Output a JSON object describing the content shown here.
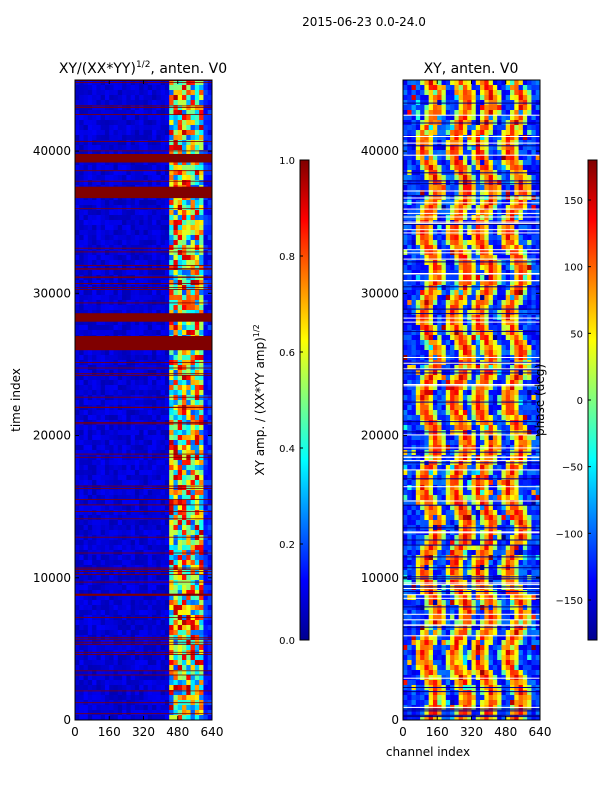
{
  "figure": {
    "suptitle": "2015-06-23 0.0-24.0",
    "colors": {
      "background": "#ffffff",
      "flag": "#800000",
      "base_low": "#00008f",
      "axis": "#000000"
    }
  },
  "chart_data": [
    {
      "type": "heatmap",
      "title_main": "XY/(XX*YY)",
      "title_sup": "1/2",
      "title_rest": ", anten. V0",
      "xlabel": "",
      "ylabel": "time index",
      "xlim": [
        0,
        640
      ],
      "ylim": [
        0,
        45000
      ],
      "xticks": [
        0,
        160,
        320,
        480,
        640
      ],
      "yticks": [
        0,
        10000,
        20000,
        30000,
        40000
      ],
      "xtick_labels": [
        "0",
        "160",
        "320",
        "480",
        "640"
      ],
      "ytick_labels": [
        "0",
        "10000",
        "20000",
        "30000",
        "40000"
      ],
      "flagged_time_bands": [
        [
          26000,
          27000
        ],
        [
          28000,
          28600
        ],
        [
          36700,
          37500
        ],
        [
          39200,
          39800
        ]
      ],
      "colorbar": {
        "label_main": "XY amp. / (XX*YY amp)",
        "label_sup": "1/2",
        "range": [
          0.0,
          1.0
        ],
        "ticks": [
          0.0,
          0.2,
          0.4,
          0.6,
          0.8,
          1.0
        ],
        "tick_labels": [
          "0.0",
          "0.2",
          "0.4",
          "0.6",
          "0.8",
          "1.0"
        ],
        "colormap": "jet"
      }
    },
    {
      "type": "heatmap",
      "title_main": "XY, anten. V0",
      "xlabel": "channel index",
      "ylabel": "",
      "xlim": [
        0,
        640
      ],
      "ylim": [
        0,
        45000
      ],
      "xticks": [
        0,
        160,
        320,
        480,
        640
      ],
      "yticks": [
        0,
        10000,
        20000,
        30000,
        40000
      ],
      "xtick_labels": [
        "0",
        "160",
        "320",
        "480",
        "640"
      ],
      "ytick_labels": [
        "0",
        "10000",
        "20000",
        "30000",
        "40000"
      ],
      "colorbar": {
        "label_main": "phase (deg)",
        "range": [
          -180,
          180
        ],
        "ticks": [
          -150,
          -100,
          -50,
          0,
          50,
          100,
          150
        ],
        "tick_labels": [
          "−150",
          "−100",
          "−50",
          "0",
          "50",
          "100",
          "150"
        ],
        "colormap": "jet"
      }
    }
  ]
}
